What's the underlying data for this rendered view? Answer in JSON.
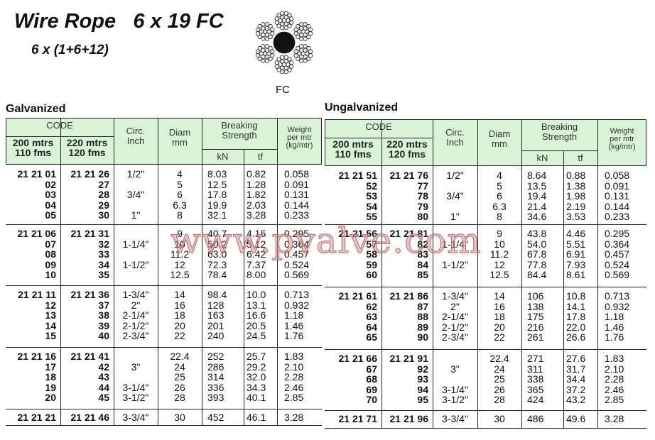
{
  "title": "Wire Rope   6 x 19 FC",
  "subtitle": "6 x (1+6+12)",
  "rope_label": "FC",
  "watermark": "www.pvalve.com",
  "header_color": "#d8f3d6",
  "headers": {
    "code": "CODE",
    "col200": "200 mtrs\n110 fms",
    "col220": "220 mtrs\n120 fms",
    "circ": "Circ.\nInch",
    "diam": "Diam\nmm",
    "breaking": "Breaking\nStrength",
    "kn": "kN",
    "tf": "tf",
    "weight": "Weight\nper mtr\n(kg/mtr)"
  },
  "tables": [
    {
      "label": "Galvanized",
      "groups": [
        {
          "c200": [
            "21 21 01",
            "02",
            "03",
            "04",
            "05"
          ],
          "c220": [
            "21 21 26",
            "27",
            "28",
            "29",
            "30"
          ],
          "circ": [
            "1/2\"",
            "",
            "3/4\"",
            "",
            "1\""
          ],
          "diam": [
            "4",
            "5",
            "6",
            "6.3",
            "8"
          ],
          "kn": [
            "8.03",
            "12.5",
            "17.8",
            "19.9",
            "32.1"
          ],
          "tf": [
            "0.82",
            "1.28",
            "1.82",
            "2.03",
            "3.28"
          ],
          "w": [
            "0.058",
            "0.091",
            "0.131",
            "0.144",
            "0.233"
          ]
        },
        {
          "c200": [
            "21 21 06",
            "07",
            "08",
            "09",
            "10"
          ],
          "c220": [
            "21 21 31",
            "32",
            "33",
            "34",
            "35"
          ],
          "circ": [
            "",
            "1-1/4\"",
            "",
            "1-1/2\"",
            ""
          ],
          "diam": [
            "9",
            "10",
            "11.2",
            "12",
            "12.5"
          ],
          "kn": [
            "40.7",
            "50.2",
            "63.0",
            "72.3",
            "78.4"
          ],
          "tf": [
            "4.15",
            "5.12",
            "6.42",
            "7.37",
            "8.00"
          ],
          "w": [
            "0.295",
            "0.364",
            "0.457",
            "0.524",
            "0.569"
          ]
        },
        {
          "c200": [
            "21 21 11",
            "12",
            "13",
            "14",
            "15"
          ],
          "c220": [
            "21 21 36",
            "37",
            "38",
            "39",
            "40"
          ],
          "circ": [
            "1-3/4\"",
            "2\"",
            "2-1/4\"",
            "2-1/2\"",
            "2-3/4\""
          ],
          "diam": [
            "14",
            "16",
            "18",
            "20",
            "22"
          ],
          "kn": [
            "98.4",
            "128",
            "163",
            "201",
            "240"
          ],
          "tf": [
            "10.0",
            "13.1",
            "16.6",
            "20.5",
            "24.5"
          ],
          "w": [
            "0.713",
            "0.932",
            "1.18",
            "1.46",
            "1.76"
          ]
        },
        {
          "c200": [
            "21 21 16",
            "17",
            "18",
            "19",
            "20"
          ],
          "c220": [
            "21 21 41",
            "42",
            "43",
            "44",
            "45"
          ],
          "circ": [
            "",
            "3\"",
            "",
            "3-1/4\"",
            "3-1/2\""
          ],
          "diam": [
            "22.4",
            "24",
            "25",
            "26",
            "28"
          ],
          "kn": [
            "252",
            "286",
            "314",
            "336",
            "393"
          ],
          "tf": [
            "25.7",
            "29.2",
            "32.0",
            "34.3",
            "40.1"
          ],
          "w": [
            "1.83",
            "2.10",
            "2.28",
            "2.46",
            "2.85"
          ]
        },
        {
          "c200": [
            "21 21 21"
          ],
          "c220": [
            "21 21 46"
          ],
          "circ": [
            "3-3/4\""
          ],
          "diam": [
            "30"
          ],
          "kn": [
            "452"
          ],
          "tf": [
            "46.1"
          ],
          "w": [
            "3.28"
          ]
        }
      ]
    },
    {
      "label": "Ungalvanized",
      "groups": [
        {
          "c200": [
            "21 21 51",
            "52",
            "53",
            "54",
            "55"
          ],
          "c220": [
            "21 21 76",
            "77",
            "78",
            "79",
            "80"
          ],
          "circ": [
            "1/2\"",
            "",
            "3/4\"",
            "",
            "1\""
          ],
          "diam": [
            "4",
            "5",
            "6",
            "6.3",
            "8"
          ],
          "kn": [
            "8.64",
            "13.5",
            "19.4",
            "21.4",
            "34.6"
          ],
          "tf": [
            "0.88",
            "1.38",
            "1.98",
            "2.19",
            "3.53"
          ],
          "w": [
            "0.058",
            "0.091",
            "0.131",
            "0.144",
            "0.233"
          ]
        },
        {
          "c200": [
            "21 21 56",
            "57",
            "58",
            "59",
            "60"
          ],
          "c220": [
            "21 21 81",
            "82",
            "83",
            "84",
            "85"
          ],
          "circ": [
            "",
            "1-1/4\"",
            "",
            "1-1/2\"",
            ""
          ],
          "diam": [
            "9",
            "10",
            "11.2",
            "12",
            "12.5"
          ],
          "kn": [
            "43.8",
            "54.0",
            "67.8",
            "77.8",
            "84.4"
          ],
          "tf": [
            "4.46",
            "5.51",
            "6.91",
            "7.93",
            "8.61"
          ],
          "w": [
            "0.295",
            "0.364",
            "0.457",
            "0.524",
            "0.569"
          ]
        },
        {
          "c200": [
            "21 21 61",
            "62",
            "63",
            "64",
            "65"
          ],
          "c220": [
            "21 21 86",
            "87",
            "88",
            "89",
            "90"
          ],
          "circ": [
            "1-3/4\"",
            "2\"",
            "2-1/4\"",
            "2-1/2\"",
            "2-3/4\""
          ],
          "diam": [
            "14",
            "16",
            "18",
            "20",
            "22"
          ],
          "kn": [
            "106",
            "138",
            "175",
            "216",
            "261"
          ],
          "tf": [
            "10.8",
            "14.1",
            "17.8",
            "22.0",
            "26.6"
          ],
          "w": [
            "0.713",
            "0.932",
            "1.18",
            "1.46",
            "1.76"
          ]
        },
        {
          "c200": [
            "21 21 66",
            "67",
            "68",
            "69",
            "70"
          ],
          "c220": [
            "21 21 91",
            "92",
            "93",
            "94",
            "95"
          ],
          "circ": [
            "",
            "3\"",
            "",
            "3-1/4\"",
            "3-1/2\""
          ],
          "diam": [
            "22.4",
            "24",
            "25",
            "26",
            "28"
          ],
          "kn": [
            "271",
            "311",
            "338",
            "365",
            "424"
          ],
          "tf": [
            "27.6",
            "31.7",
            "34.4",
            "37.2",
            "43.2"
          ],
          "w": [
            "1.83",
            "2.10",
            "2.28",
            "2.46",
            "2.85"
          ]
        },
        {
          "c200": [
            "21 21 71"
          ],
          "c220": [
            "21 21 96"
          ],
          "circ": [
            "3-3/4\""
          ],
          "diam": [
            "30"
          ],
          "kn": [
            "486"
          ],
          "tf": [
            "49.6"
          ],
          "w": [
            "3.28"
          ]
        }
      ]
    }
  ]
}
